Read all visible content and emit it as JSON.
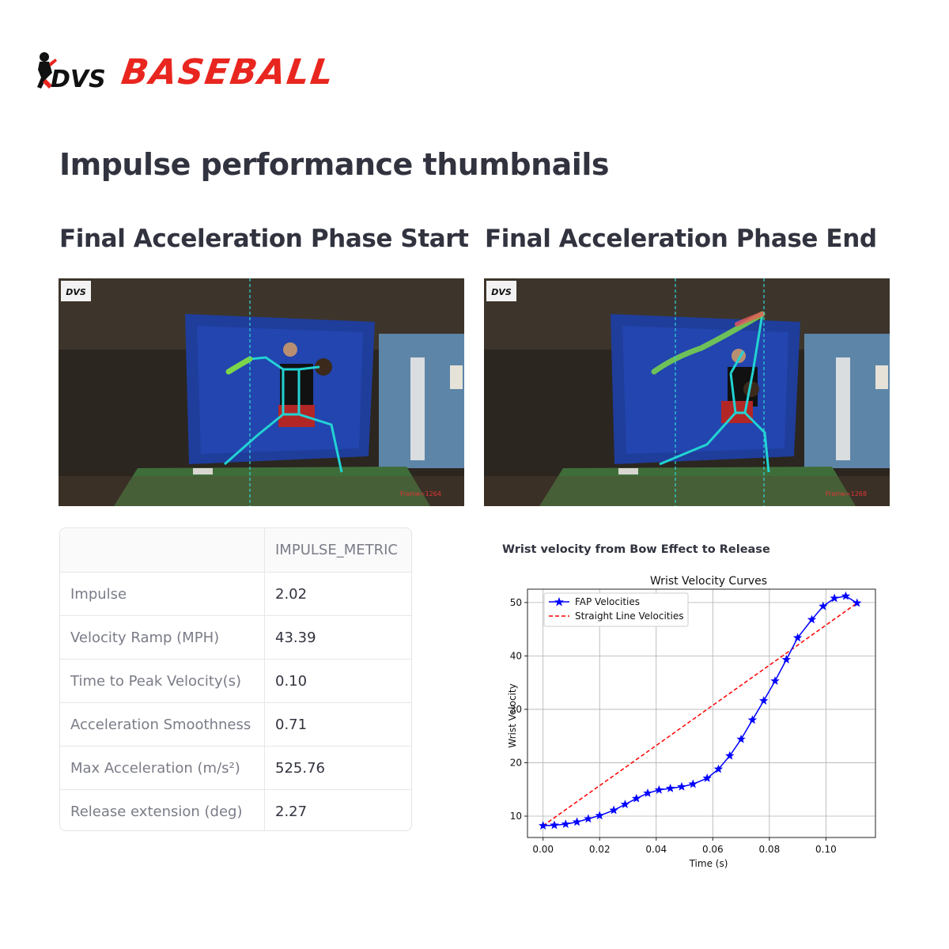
{
  "brand": {
    "logo_text": "BASEBALL",
    "logo_mark_text": "DVS",
    "accent_color": "#e8261f"
  },
  "page": {
    "title": "Impulse performance thumbnails"
  },
  "thumbnails": {
    "start": {
      "heading": "Final Acceleration Phase Start",
      "watermark": "DVS",
      "frame_label": "Frame=1264"
    },
    "end": {
      "heading": "Final Acceleration Phase End",
      "watermark": "DVS",
      "frame_label": "Frame=1268"
    }
  },
  "metrics_table": {
    "column_header": "IMPULSE_METRIC",
    "rows": [
      {
        "label": "Impulse",
        "value": "2.02"
      },
      {
        "label": "Velocity Ramp (MPH)",
        "value": "43.39"
      },
      {
        "label": "Time to Peak Velocity(s)",
        "value": "0.10"
      },
      {
        "label": "Acceleration Smoothness",
        "value": "0.71"
      },
      {
        "label": "Max Acceleration (m/s²)",
        "value": "525.76"
      },
      {
        "label": "Release extension (deg)",
        "value": "2.27"
      }
    ]
  },
  "chart_caption": "Wrist velocity from Bow Effect to Release",
  "chart_data": {
    "type": "line",
    "title": "Wrist Velocity Curves",
    "xlabel": "Time (s)",
    "ylabel": "Wrist Velocity",
    "xlim": [
      -0.0055,
      0.1175
    ],
    "ylim": [
      6.0,
      52.5
    ],
    "xticks": [
      "0.00",
      "0.02",
      "0.04",
      "0.06",
      "0.08",
      "0.10"
    ],
    "xtick_values": [
      0,
      0.02,
      0.04,
      0.06,
      0.08,
      0.1
    ],
    "yticks": [
      "10",
      "20",
      "30",
      "40",
      "50"
    ],
    "ytick_values": [
      10,
      20,
      30,
      40,
      50
    ],
    "grid": true,
    "legend": "top-left",
    "series": [
      {
        "name": "FAP Velocities",
        "color": "#0000ff",
        "marker": "star",
        "x": [
          0,
          0.004,
          0.008,
          0.012,
          0.016,
          0.02,
          0.025,
          0.029,
          0.033,
          0.037,
          0.041,
          0.045,
          0.049,
          0.053,
          0.058,
          0.062,
          0.066,
          0.07,
          0.074,
          0.078,
          0.082,
          0.086,
          0.09,
          0.095,
          0.099,
          0.103,
          0.107,
          0.111
        ],
        "y": [
          8.2,
          8.3,
          8.5,
          8.9,
          9.5,
          10.1,
          11.1,
          12.2,
          13.3,
          14.3,
          14.9,
          15.2,
          15.5,
          16.0,
          17.1,
          18.8,
          21.3,
          24.4,
          28.0,
          31.6,
          35.3,
          39.3,
          43.4,
          46.8,
          49.3,
          50.8,
          51.2,
          49.9
        ]
      },
      {
        "name": "Straight Line Velocities",
        "color": "#ff0000",
        "style": "dashed",
        "x": [
          0,
          0.111
        ],
        "y": [
          8.2,
          49.9
        ]
      }
    ]
  }
}
